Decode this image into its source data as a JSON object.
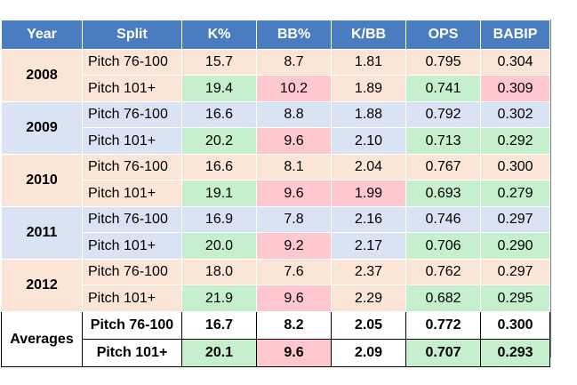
{
  "chart_data": {
    "type": "table",
    "columns": [
      "Year",
      "Split",
      "K%",
      "BB%",
      "K/BB",
      "OPS",
      "BABIP"
    ],
    "rows": [
      {
        "year": "2008",
        "split": "Pitch 76-100",
        "k": "15.7",
        "bb": "8.7",
        "kbb": "1.81",
        "ops": "0.795",
        "babip": "0.304"
      },
      {
        "year": "2008",
        "split": "Pitch 101+",
        "k": "19.4",
        "bb": "10.2",
        "kbb": "1.89",
        "ops": "0.741",
        "babip": "0.309"
      },
      {
        "year": "2009",
        "split": "Pitch 76-100",
        "k": "16.6",
        "bb": "8.8",
        "kbb": "1.88",
        "ops": "0.792",
        "babip": "0.302"
      },
      {
        "year": "2009",
        "split": "Pitch 101+",
        "k": "20.2",
        "bb": "9.6",
        "kbb": "2.10",
        "ops": "0.713",
        "babip": "0.292"
      },
      {
        "year": "2010",
        "split": "Pitch 76-100",
        "k": "16.6",
        "bb": "8.1",
        "kbb": "2.04",
        "ops": "0.767",
        "babip": "0.300"
      },
      {
        "year": "2010",
        "split": "Pitch 101+",
        "k": "19.1",
        "bb": "9.6",
        "kbb": "1.99",
        "ops": "0.693",
        "babip": "0.279"
      },
      {
        "year": "2011",
        "split": "Pitch 76-100",
        "k": "16.9",
        "bb": "7.8",
        "kbb": "2.16",
        "ops": "0.746",
        "babip": "0.297"
      },
      {
        "year": "2011",
        "split": "Pitch 101+",
        "k": "20.0",
        "bb": "9.2",
        "kbb": "2.17",
        "ops": "0.706",
        "babip": "0.290"
      },
      {
        "year": "2012",
        "split": "Pitch 76-100",
        "k": "18.0",
        "bb": "7.6",
        "kbb": "2.37",
        "ops": "0.762",
        "babip": "0.297"
      },
      {
        "year": "2012",
        "split": "Pitch 101+",
        "k": "21.9",
        "bb": "9.6",
        "kbb": "2.29",
        "ops": "0.682",
        "babip": "0.295"
      }
    ],
    "averages": {
      "label": "Averages",
      "rows": [
        {
          "split": "Pitch 76-100",
          "k": "16.7",
          "bb": "8.2",
          "kbb": "2.05",
          "ops": "0.772",
          "babip": "0.300"
        },
        {
          "split": "Pitch 101+",
          "k": "20.1",
          "bb": "9.6",
          "kbb": "2.09",
          "ops": "0.707",
          "babip": "0.293"
        }
      ]
    }
  },
  "colors": {
    "header_bg": "#4a7cc0",
    "peach": "#fbe5d6",
    "blue": "#dae3f3",
    "green_highlight": "#c6efce",
    "red_highlight": "#ffc7ce"
  }
}
